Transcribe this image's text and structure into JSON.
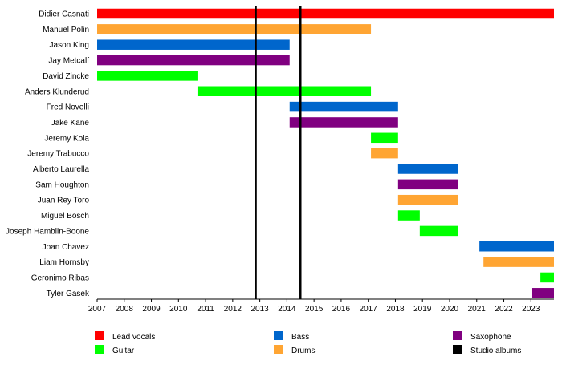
{
  "chart_data": {
    "type": "timeline",
    "xlim": [
      2007,
      2023.85
    ],
    "x_ticks": [
      "2007",
      "2008",
      "2009",
      "2010",
      "2011",
      "2012",
      "2013",
      "2014",
      "2015",
      "2016",
      "2017",
      "2018",
      "2019",
      "2020",
      "2021",
      "2022",
      "2023"
    ],
    "colors": {
      "Lead vocals": "#ff0000",
      "Bass": "#0066cc",
      "Saxophone": "#800080",
      "Guitar": "#00ff00",
      "Drums": "#ffa533",
      "Studio albums": "#000000"
    },
    "legend": [
      {
        "label": "Lead vocals",
        "color": "#ff0000"
      },
      {
        "label": "Bass",
        "color": "#0066cc"
      },
      {
        "label": "Saxophone",
        "color": "#800080"
      },
      {
        "label": "Guitar",
        "color": "#00ff00"
      },
      {
        "label": "Drums",
        "color": "#ffa533"
      },
      {
        "label": "Studio albums",
        "color": "#000000"
      }
    ],
    "members": [
      {
        "name": "Didier Casnati",
        "spans": [
          {
            "role": "Lead vocals",
            "start": 2007.0,
            "end": 2023.85
          }
        ]
      },
      {
        "name": "Manuel Polin",
        "spans": [
          {
            "role": "Drums",
            "start": 2007.0,
            "end": 2017.1
          }
        ]
      },
      {
        "name": "Jason King",
        "spans": [
          {
            "role": "Bass",
            "start": 2007.0,
            "end": 2014.1
          }
        ]
      },
      {
        "name": "Jay Metcalf",
        "spans": [
          {
            "role": "Saxophone",
            "start": 2007.0,
            "end": 2014.1
          }
        ]
      },
      {
        "name": "David Zincke",
        "spans": [
          {
            "role": "Guitar",
            "start": 2007.0,
            "end": 2010.7
          }
        ]
      },
      {
        "name": "Anders Klunderud",
        "spans": [
          {
            "role": "Guitar",
            "start": 2010.7,
            "end": 2017.1
          }
        ]
      },
      {
        "name": "Fred Novelli",
        "spans": [
          {
            "role": "Bass",
            "start": 2014.1,
            "end": 2018.1
          }
        ]
      },
      {
        "name": "Jake Kane",
        "spans": [
          {
            "role": "Saxophone",
            "start": 2014.1,
            "end": 2018.1
          }
        ]
      },
      {
        "name": "Jeremy Kola",
        "spans": [
          {
            "role": "Guitar",
            "start": 2017.1,
            "end": 2018.1
          }
        ]
      },
      {
        "name": "Jeremy Trabucco",
        "spans": [
          {
            "role": "Drums",
            "start": 2017.1,
            "end": 2018.1
          }
        ]
      },
      {
        "name": "Alberto Laurella",
        "spans": [
          {
            "role": "Bass",
            "start": 2018.1,
            "end": 2020.3
          }
        ]
      },
      {
        "name": "Sam Houghton",
        "spans": [
          {
            "role": "Saxophone",
            "start": 2018.1,
            "end": 2020.3
          }
        ]
      },
      {
        "name": "Juan Rey Toro",
        "spans": [
          {
            "role": "Drums",
            "start": 2018.1,
            "end": 2020.3
          }
        ]
      },
      {
        "name": "Miguel Bosch",
        "spans": [
          {
            "role": "Guitar",
            "start": 2018.1,
            "end": 2018.9
          }
        ]
      },
      {
        "name": "Joseph Hamblin-Boone",
        "spans": [
          {
            "role": "Guitar",
            "start": 2018.9,
            "end": 2020.3
          }
        ]
      },
      {
        "name": "Joan Chavez",
        "spans": [
          {
            "role": "Bass",
            "start": 2021.1,
            "end": 2023.85
          }
        ]
      },
      {
        "name": "Liam Hornsby",
        "spans": [
          {
            "role": "Drums",
            "start": 2021.25,
            "end": 2023.85
          }
        ]
      },
      {
        "name": "Geronimo Ribas",
        "spans": [
          {
            "role": "Guitar",
            "start": 2023.35,
            "end": 2023.85
          }
        ]
      },
      {
        "name": "Tyler Gasek",
        "spans": [
          {
            "role": "Saxophone",
            "start": 2023.05,
            "end": 2023.85
          }
        ]
      }
    ],
    "studio_albums": [
      2012.85,
      2014.5
    ]
  }
}
